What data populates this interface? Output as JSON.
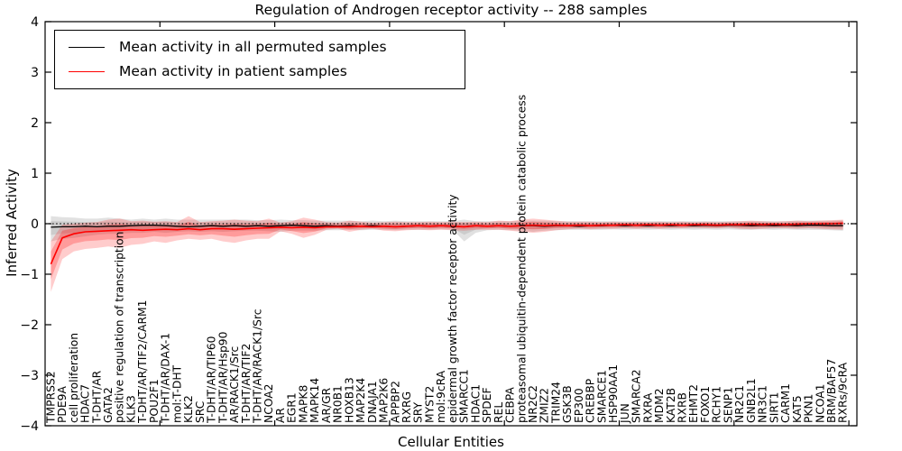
{
  "title": "Regulation of Androgen receptor activity -- 288 samples",
  "axes": {
    "ylabel": "Inferred Activity",
    "xlabel": "Cellular Entities",
    "ytick_values": [
      4,
      3,
      2,
      1,
      0,
      -1,
      -2,
      -3,
      -4
    ],
    "ytick_labels": [
      "4",
      "3",
      "2",
      "1",
      "0",
      "−1",
      "−2",
      "−3",
      "−4"
    ],
    "ylim": [
      -4,
      4
    ]
  },
  "legend": [
    {
      "label": "Mean activity in all permuted samples",
      "color": "#000000"
    },
    {
      "label": "Mean activity in patient samples",
      "color": "#ff0000"
    }
  ],
  "colors": {
    "permuted_line": "#000000",
    "patient_line": "#ff0000",
    "permuted_band": "#777777",
    "patient_band": "#ff0000",
    "zero_line": "#000000"
  },
  "chart_data": {
    "type": "line",
    "title": "Regulation of Androgen receptor activity -- 288 samples",
    "xlabel": "Cellular Entities",
    "ylabel": "Inferred Activity",
    "ylim": [
      -4,
      4
    ],
    "grid": false,
    "legend_position": "upper left",
    "zero_line": {
      "y": 0,
      "style": "dotted",
      "color": "#000000"
    },
    "categories": [
      "TMPRSS2",
      "PDE9A",
      "cell proliferation",
      "HDAC7",
      "T-DHT/AR",
      "GATA2",
      "positive regulation of transcription",
      "KLK3",
      "T-DHT/AR/TIF2/CARM1",
      "POU2F1",
      "T-DHT/AR/DAX-1",
      "mol:T-DHT",
      "KLK2",
      "SRC",
      "T-DHT/AR/TIP60",
      "T-DHT/AR/Hsp90",
      "AR/RACK1/Src",
      "T-DHT/AR/TIF2",
      "T-DHT/AR/RACK1/Src",
      "NCOA2",
      "AR",
      "EGR1",
      "MAPK8",
      "MAPK14",
      "AR/GR",
      "NR0B1",
      "HOXB13",
      "MAP2K4",
      "DNAJA1",
      "MAP2K6",
      "APPBP2",
      "RXRG",
      "SRY",
      "MYST2",
      "mol:9cRA",
      "epidermal growth factor receptor activity",
      "SMARCC1",
      "HDAC1",
      "SPDEF",
      "REL",
      "CEBPA",
      "proteasomal ubiquitin-dependent protein catabolic process",
      "NR2C2",
      "ZMIZ2",
      "TRIM24",
      "GSK3B",
      "EP300",
      "CREBBP",
      "SMARCE1",
      "HSP90AA1",
      "JUN",
      "SMARCA2",
      "RXRA",
      "MDM2",
      "KAT2B",
      "RXRB",
      "EHMT2",
      "FOXO1",
      "RCHY1",
      "SENP1",
      "NR2C1",
      "GNB2L1",
      "NR3C1",
      "SIRT1",
      "CARM1",
      "KAT5",
      "PKN1",
      "NCOA1",
      "BRM/BAF57",
      "RXRs/9cRA"
    ],
    "series": [
      {
        "name": "Mean activity in all permuted samples",
        "color": "#000000",
        "values": [
          -0.07,
          -0.06,
          -0.06,
          -0.05,
          -0.06,
          -0.05,
          -0.05,
          -0.04,
          -0.03,
          -0.03,
          -0.04,
          -0.05,
          -0.06,
          -0.05,
          -0.04,
          -0.05,
          -0.04,
          -0.05,
          -0.04,
          -0.05,
          -0.04,
          -0.03,
          -0.04,
          -0.05,
          -0.04,
          -0.05,
          -0.04,
          -0.05,
          -0.04,
          -0.05,
          -0.06,
          -0.05,
          -0.04,
          -0.05,
          -0.04,
          -0.05,
          -0.06,
          -0.04,
          -0.05,
          -0.04,
          -0.05,
          -0.04,
          -0.04,
          -0.05,
          -0.04,
          -0.04,
          -0.05,
          -0.04,
          -0.04,
          -0.03,
          -0.04,
          -0.03,
          -0.04,
          -0.03,
          -0.04,
          -0.03,
          -0.04,
          -0.03,
          -0.04,
          -0.03,
          -0.03,
          -0.04,
          -0.03,
          -0.04,
          -0.03,
          -0.04,
          -0.03,
          -0.03,
          -0.04,
          -0.04
        ],
        "band_upper": [
          0.15,
          0.13,
          0.12,
          0.1,
          0.1,
          0.12,
          0.1,
          0.08,
          0.1,
          0.08,
          0.1,
          0.08,
          0.08,
          0.08,
          0.08,
          0.08,
          0.08,
          0.08,
          0.07,
          0.07,
          0.08,
          0.07,
          0.07,
          0.06,
          0.06,
          0.06,
          0.06,
          0.05,
          0.06,
          0.05,
          0.06,
          0.05,
          0.05,
          0.05,
          0.05,
          0.05,
          0.08,
          0.05,
          0.05,
          0.05,
          0.05,
          0.06,
          0.06,
          0.06,
          0.05,
          0.05,
          0.05,
          0.05,
          0.05,
          0.05,
          0.05,
          0.05,
          0.05,
          0.05,
          0.05,
          0.05,
          0.05,
          0.05,
          0.05,
          0.05,
          0.05,
          0.05,
          0.05,
          0.05,
          0.05,
          0.06,
          0.06,
          0.06,
          0.06,
          0.07
        ],
        "band_lower": [
          -0.35,
          -0.3,
          -0.28,
          -0.25,
          -0.22,
          -0.2,
          -0.2,
          -0.18,
          -0.18,
          -0.16,
          -0.18,
          -0.16,
          -0.15,
          -0.16,
          -0.15,
          -0.16,
          -0.15,
          -0.14,
          -0.14,
          -0.15,
          -0.16,
          -0.14,
          -0.14,
          -0.14,
          -0.13,
          -0.13,
          -0.12,
          -0.13,
          -0.12,
          -0.12,
          -0.13,
          -0.12,
          -0.12,
          -0.12,
          -0.11,
          -0.12,
          -0.35,
          -0.18,
          -0.13,
          -0.12,
          -0.13,
          -0.14,
          -0.16,
          -0.14,
          -0.13,
          -0.12,
          -0.12,
          -0.12,
          -0.12,
          -0.11,
          -0.12,
          -0.11,
          -0.12,
          -0.11,
          -0.12,
          -0.11,
          -0.12,
          -0.11,
          -0.12,
          -0.11,
          -0.12,
          -0.12,
          -0.11,
          -0.12,
          -0.11,
          -0.12,
          -0.12,
          -0.12,
          -0.13,
          -0.14
        ]
      },
      {
        "name": "Mean activity in patient samples",
        "color": "#ff0000",
        "values": [
          -0.8,
          -0.28,
          -0.2,
          -0.16,
          -0.15,
          -0.14,
          -0.13,
          -0.12,
          -0.13,
          -0.12,
          -0.11,
          -0.12,
          -0.1,
          -0.12,
          -0.1,
          -0.1,
          -0.11,
          -0.1,
          -0.09,
          -0.08,
          -0.07,
          -0.08,
          -0.07,
          -0.08,
          -0.06,
          -0.06,
          -0.06,
          -0.05,
          -0.06,
          -0.05,
          -0.06,
          -0.05,
          -0.04,
          -0.05,
          -0.04,
          -0.05,
          -0.06,
          -0.04,
          -0.05,
          -0.04,
          -0.05,
          -0.04,
          -0.03,
          -0.04,
          -0.03,
          -0.04,
          -0.03,
          -0.04,
          -0.03,
          -0.03,
          -0.02,
          -0.03,
          -0.02,
          -0.03,
          -0.02,
          -0.03,
          -0.02,
          -0.02,
          -0.03,
          -0.02,
          -0.02,
          -0.01,
          -0.02,
          -0.01,
          -0.02,
          -0.01,
          0.0,
          0.0,
          0.0,
          0.01
        ],
        "band_upper": [
          -0.35,
          -0.02,
          0.0,
          0.02,
          0.03,
          0.08,
          0.1,
          0.05,
          0.06,
          0.04,
          0.05,
          0.03,
          0.15,
          0.03,
          0.05,
          0.06,
          0.08,
          0.06,
          0.05,
          0.1,
          0.02,
          0.05,
          0.12,
          0.08,
          0.03,
          0.02,
          0.06,
          0.04,
          0.02,
          0.03,
          0.04,
          0.03,
          0.03,
          0.04,
          0.03,
          0.04,
          0.03,
          0.04,
          0.03,
          0.06,
          0.05,
          0.08,
          0.1,
          0.08,
          0.06,
          0.04,
          0.04,
          0.04,
          0.03,
          0.04,
          0.03,
          0.04,
          0.03,
          0.04,
          0.03,
          0.04,
          0.03,
          0.04,
          0.03,
          0.04,
          0.05,
          0.06,
          0.05,
          0.04,
          0.05,
          0.06,
          0.05,
          0.06,
          0.07,
          0.08
        ],
        "band_lower": [
          -1.35,
          -0.7,
          -0.55,
          -0.5,
          -0.48,
          -0.45,
          -0.48,
          -0.42,
          -0.4,
          -0.35,
          -0.38,
          -0.33,
          -0.3,
          -0.32,
          -0.3,
          -0.35,
          -0.38,
          -0.33,
          -0.3,
          -0.3,
          -0.15,
          -0.2,
          -0.28,
          -0.22,
          -0.12,
          -0.1,
          -0.16,
          -0.12,
          -0.1,
          -0.14,
          -0.15,
          -0.13,
          -0.12,
          -0.13,
          -0.12,
          -0.13,
          -0.14,
          -0.12,
          -0.12,
          -0.12,
          -0.14,
          -0.16,
          -0.18,
          -0.16,
          -0.13,
          -0.11,
          -0.1,
          -0.11,
          -0.1,
          -0.1,
          -0.09,
          -0.1,
          -0.09,
          -0.1,
          -0.09,
          -0.09,
          -0.08,
          -0.09,
          -0.09,
          -0.08,
          -0.1,
          -0.11,
          -0.1,
          -0.09,
          -0.09,
          -0.1,
          -0.09,
          -0.1,
          -0.11,
          -0.12
        ]
      }
    ],
    "x_decade_ticks": [
      10,
      20,
      30,
      40,
      50,
      60,
      70
    ]
  }
}
